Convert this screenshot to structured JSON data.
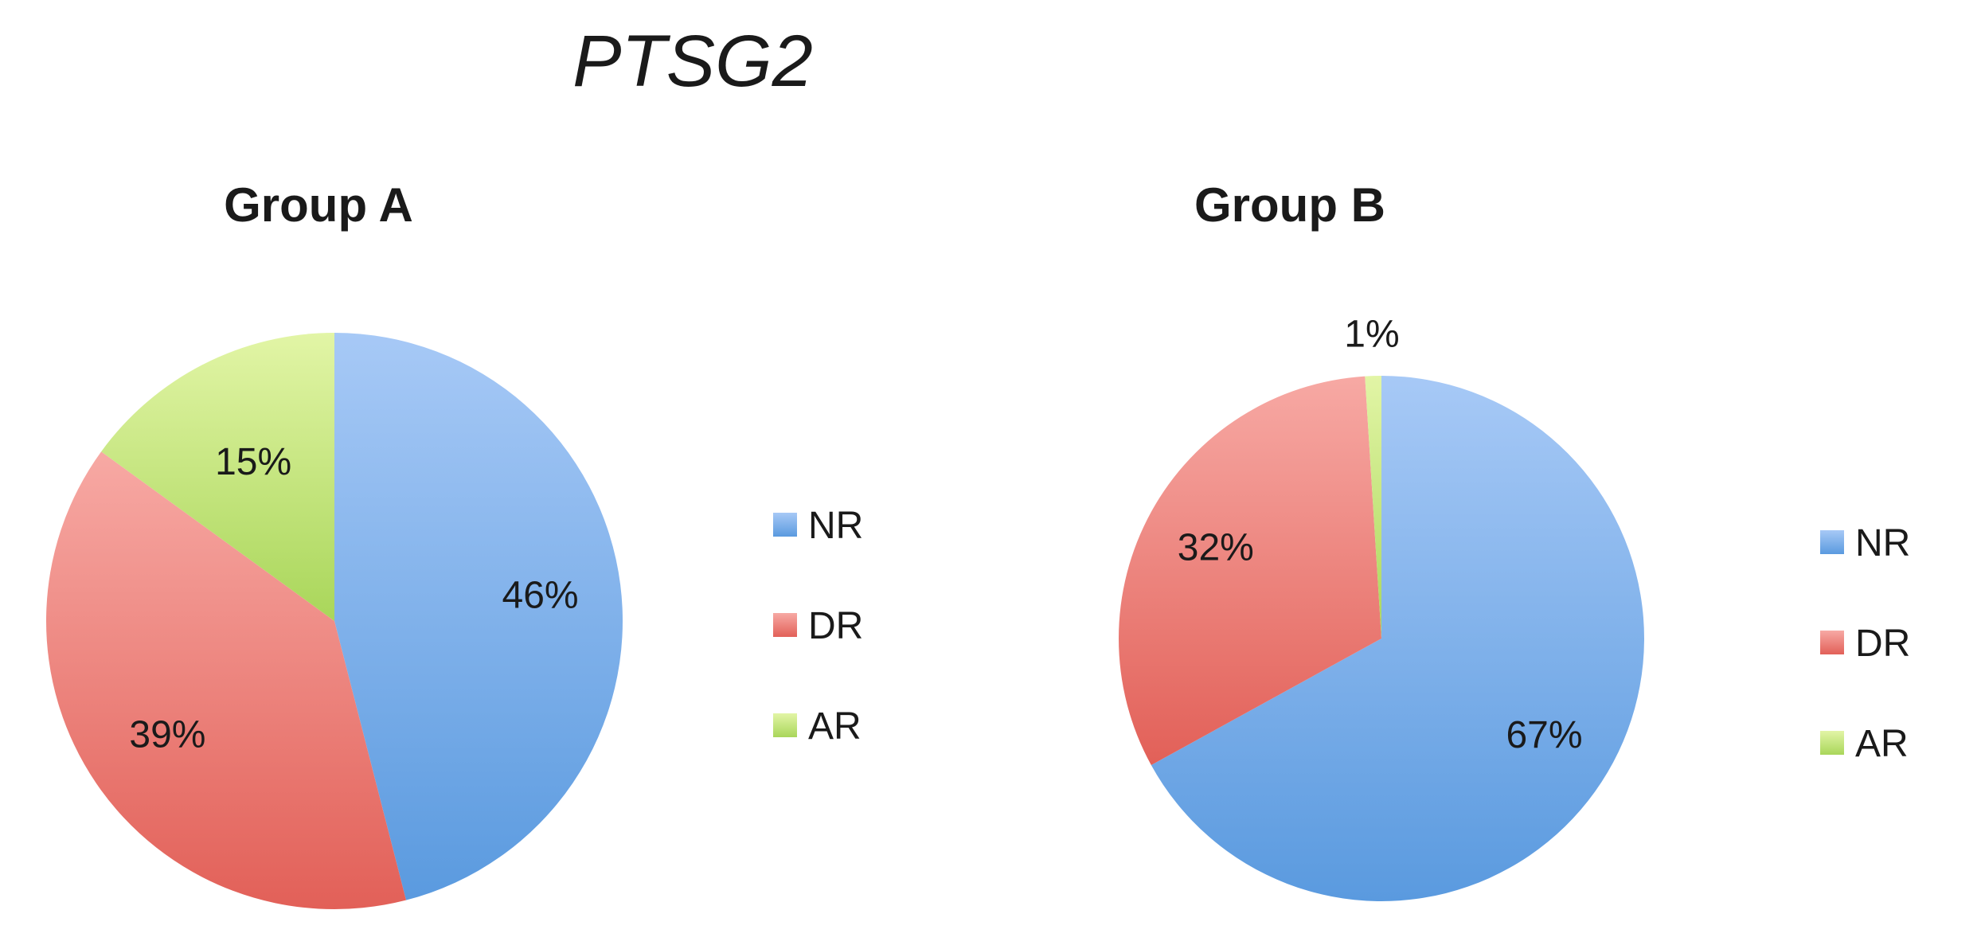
{
  "title": "PTSG2",
  "colors": {
    "NR": [
      "#a7c9f6",
      "#5a9adf"
    ],
    "DR": [
      "#f7a9a4",
      "#e26058"
    ],
    "AR": [
      "#e2f5a6",
      "#a9d65a"
    ]
  },
  "chart_data": [
    {
      "type": "pie",
      "title": "Group A",
      "legend": [
        "NR",
        "DR",
        "AR"
      ],
      "legend_position": "right",
      "slices": [
        {
          "name": "NR",
          "value": 46,
          "label": "46%"
        },
        {
          "name": "DR",
          "value": 39,
          "label": "39%"
        },
        {
          "name": "AR",
          "value": 15,
          "label": "15%"
        }
      ]
    },
    {
      "type": "pie",
      "title": "Group B",
      "legend": [
        "NR",
        "DR",
        "AR"
      ],
      "legend_position": "right",
      "slices": [
        {
          "name": "NR",
          "value": 67,
          "label": "67%"
        },
        {
          "name": "DR",
          "value": 32,
          "label": "32%"
        },
        {
          "name": "AR",
          "value": 1,
          "label": "1%"
        }
      ]
    }
  ]
}
